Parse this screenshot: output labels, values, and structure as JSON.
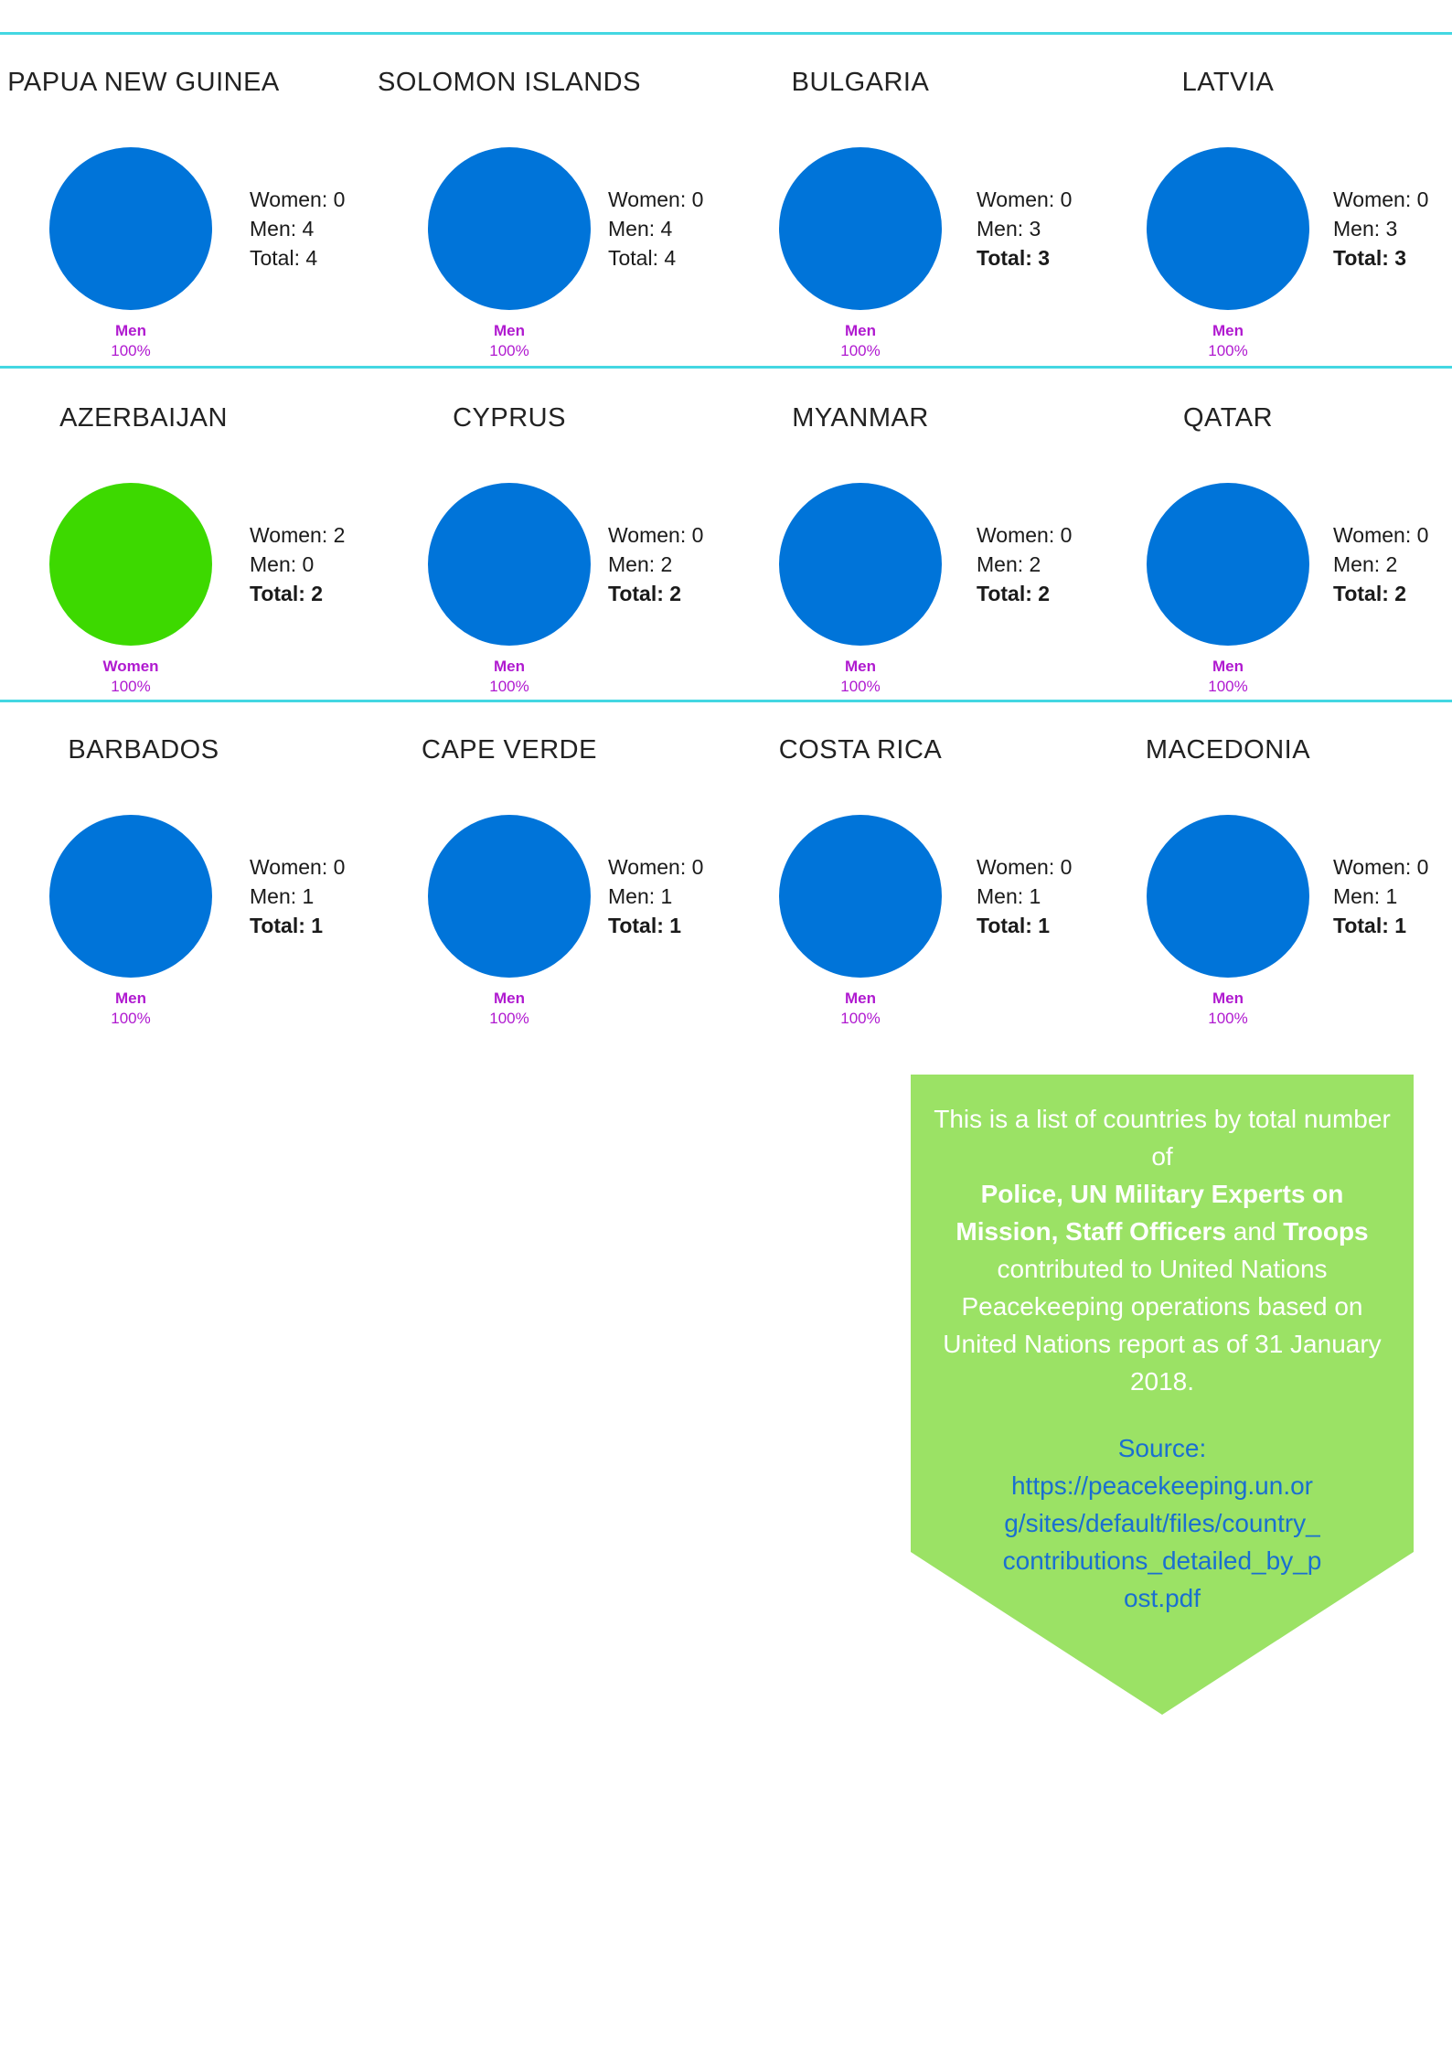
{
  "colors": {
    "men": "#0074d9",
    "women": "#3dd900",
    "label": "#b01ad0",
    "rule": "#44d7e2",
    "box": "#9be265",
    "link": "#1a6fd1"
  },
  "chart_data": [
    {
      "type": "pie",
      "title": "PAPUA NEW GUINEA",
      "women": 0,
      "men": 4,
      "total": 4,
      "series": [
        {
          "name": "Women",
          "values": [
            0
          ]
        },
        {
          "name": "Men",
          "values": [
            4
          ]
        }
      ],
      "slice_label": "Men",
      "slice_pct": "100%",
      "stats": {
        "women": "Women: 0",
        "men": "Men: 4",
        "total": "Total: 4"
      }
    },
    {
      "type": "pie",
      "title": "SOLOMON ISLANDS",
      "women": 0,
      "men": 4,
      "total": 4,
      "series": [
        {
          "name": "Women",
          "values": [
            0
          ]
        },
        {
          "name": "Men",
          "values": [
            4
          ]
        }
      ],
      "slice_label": "Men",
      "slice_pct": "100%",
      "stats": {
        "women": "Women: 0",
        "men": "Men: 4",
        "total": "Total: 4"
      }
    },
    {
      "type": "pie",
      "title": "BULGARIA",
      "women": 0,
      "men": 3,
      "total": 3,
      "series": [
        {
          "name": "Women",
          "values": [
            0
          ]
        },
        {
          "name": "Men",
          "values": [
            3
          ]
        }
      ],
      "slice_label": "Men",
      "slice_pct": "100%",
      "stats": {
        "women": "Women: 0",
        "men": "Men: 3",
        "total": "Total: 3"
      }
    },
    {
      "type": "pie",
      "title": "LATVIA",
      "women": 0,
      "men": 3,
      "total": 3,
      "series": [
        {
          "name": "Women",
          "values": [
            0
          ]
        },
        {
          "name": "Men",
          "values": [
            3
          ]
        }
      ],
      "slice_label": "Men",
      "slice_pct": "100%",
      "stats": {
        "women": "Women: 0",
        "men": "Men: 3",
        "total": "Total: 3"
      }
    },
    {
      "type": "pie",
      "title": "AZERBAIJAN",
      "women": 2,
      "men": 0,
      "total": 2,
      "series": [
        {
          "name": "Women",
          "values": [
            2
          ]
        },
        {
          "name": "Men",
          "values": [
            0
          ]
        }
      ],
      "slice_label": "Women",
      "slice_pct": "100%",
      "stats": {
        "women": "Women: 2",
        "men": "Men: 0",
        "total": "Total: 2"
      }
    },
    {
      "type": "pie",
      "title": "CYPRUS",
      "women": 0,
      "men": 2,
      "total": 2,
      "series": [
        {
          "name": "Women",
          "values": [
            0
          ]
        },
        {
          "name": "Men",
          "values": [
            2
          ]
        }
      ],
      "slice_label": "Men",
      "slice_pct": "100%",
      "stats": {
        "women": "Women: 0",
        "men": "Men: 2",
        "total": "Total: 2"
      }
    },
    {
      "type": "pie",
      "title": "MYANMAR",
      "women": 0,
      "men": 2,
      "total": 2,
      "series": [
        {
          "name": "Women",
          "values": [
            0
          ]
        },
        {
          "name": "Men",
          "values": [
            2
          ]
        }
      ],
      "slice_label": "Men",
      "slice_pct": "100%",
      "stats": {
        "women": "Women: 0",
        "men": "Men: 2",
        "total": "Total: 2"
      }
    },
    {
      "type": "pie",
      "title": "QATAR",
      "women": 0,
      "men": 2,
      "total": 2,
      "series": [
        {
          "name": "Women",
          "values": [
            0
          ]
        },
        {
          "name": "Men",
          "values": [
            2
          ]
        }
      ],
      "slice_label": "Men",
      "slice_pct": "100%",
      "stats": {
        "women": "Women: 0",
        "men": "Men: 2",
        "total": "Total: 2"
      }
    },
    {
      "type": "pie",
      "title": "BARBADOS",
      "women": 0,
      "men": 1,
      "total": 1,
      "series": [
        {
          "name": "Women",
          "values": [
            0
          ]
        },
        {
          "name": "Men",
          "values": [
            1
          ]
        }
      ],
      "slice_label": "Men",
      "slice_pct": "100%",
      "stats": {
        "women": "Women: 0",
        "men": "Men: 1",
        "total": "Total: 1"
      }
    },
    {
      "type": "pie",
      "title": "CAPE VERDE",
      "women": 0,
      "men": 1,
      "total": 1,
      "series": [
        {
          "name": "Women",
          "values": [
            0
          ]
        },
        {
          "name": "Men",
          "values": [
            1
          ]
        }
      ],
      "slice_label": "Men",
      "slice_pct": "100%",
      "stats": {
        "women": "Women: 0",
        "men": "Men: 1",
        "total": "Total: 1"
      }
    },
    {
      "type": "pie",
      "title": "COSTA RICA",
      "women": 0,
      "men": 1,
      "total": 1,
      "series": [
        {
          "name": "Women",
          "values": [
            0
          ]
        },
        {
          "name": "Men",
          "values": [
            1
          ]
        }
      ],
      "slice_label": "Men",
      "slice_pct": "100%",
      "stats": {
        "women": "Women: 0",
        "men": "Men: 1",
        "total": "Total: 1"
      }
    },
    {
      "type": "pie",
      "title": "MACEDONIA",
      "women": 0,
      "men": 1,
      "total": 1,
      "series": [
        {
          "name": "Women",
          "values": [
            0
          ]
        },
        {
          "name": "Men",
          "values": [
            1
          ]
        }
      ],
      "slice_label": "Men",
      "slice_pct": "100%",
      "stats": {
        "women": "Women: 0",
        "men": "Men: 1",
        "total": "Total: 1"
      }
    }
  ],
  "info": {
    "intro": "This is a list of countries by total number of",
    "bold1": "Police, UN Military Experts on Mission, Staff Officers",
    "and": "and",
    "bold2": "Troops",
    "rest": "contributed to United Nations Peacekeeping operations based on United Nations report as of 31 January 2018.",
    "source_label": "Source:",
    "source_url": "https://peacekeeping.un.org/sites/default/files/country_contributions_detailed_by_post.pdf"
  }
}
